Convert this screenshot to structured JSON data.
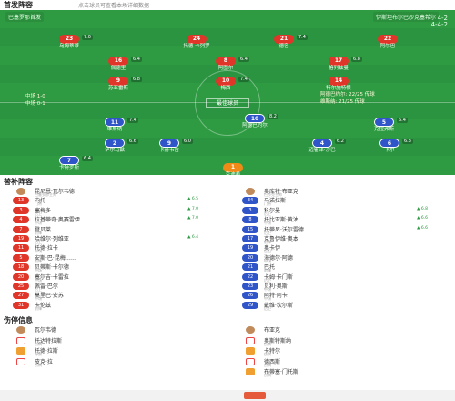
{
  "header": {
    "title": "首发阵容",
    "subtitle": "点击球员可查看本场详细数据"
  },
  "pitch": {
    "home_label": "巴塞罗那首发",
    "away_label": "伊斯坦布尔巴沙克塞希尔",
    "formation_top": "4-2",
    "formation_bottom": "4-4-2",
    "center_text": "最佳球员",
    "event_left_1": "中场 1-0",
    "event_left_2": "中场 0-1",
    "event_right_1": "阿德巴约尔: 22/25 传球",
    "event_right_2": "维斯纳: 21/25 传球",
    "home_players": [
      {
        "num": "23",
        "name": "乌姆蒂蒂",
        "tag": "7.0"
      },
      {
        "num": "24",
        "name": "托德·卡列罗",
        "tag": ""
      },
      {
        "num": "21",
        "name": "德容",
        "tag": "7.4"
      },
      {
        "num": "22",
        "name": "阿尔巴",
        "tag": ""
      },
      {
        "num": "16",
        "name": "佩德里",
        "tag": "6.4"
      },
      {
        "num": "8",
        "name": "阿图尔",
        "tag": "6.4"
      },
      {
        "num": "17",
        "name": "格列兹曼",
        "tag": "6.8"
      },
      {
        "num": "9",
        "name": "苏亚雷斯",
        "tag": "6.8"
      },
      {
        "num": "10",
        "name": "梅西",
        "tag": "7.4"
      },
      {
        "num": "14",
        "name": "特尔施特根",
        "tag": ""
      }
    ],
    "away_players": [
      {
        "num": "11",
        "name": "维斯纳",
        "tag": "7.4"
      },
      {
        "num": "10",
        "name": "阿德巴约尔",
        "tag": "8.2"
      },
      {
        "num": "5",
        "name": "克拉弗斯",
        "tag": "6.4"
      },
      {
        "num": "2",
        "name": "伊尔马兹",
        "tag": "6.6"
      },
      {
        "num": "9",
        "name": "卡赫韦吉",
        "tag": "6.0"
      },
      {
        "num": "4",
        "name": "迈霍泽·沙巴",
        "tag": "6.2"
      },
      {
        "num": "6",
        "name": "卡尔",
        "tag": "6.3"
      },
      {
        "num": "7",
        "name": "卡特罗斯",
        "tag": "6.4"
      },
      {
        "num": "1",
        "name": "京迪希",
        "tag": ""
      }
    ]
  },
  "bench": {
    "title": "替补阵容",
    "home_coach": "瓦尔韦德",
    "away_coach": "布亚克",
    "home": [
      {
        "num": "主帅",
        "name": "昆尼恩·瓦尔韦德",
        "pos": "巴塞罗那主帅",
        "ev": ""
      },
      {
        "num": "13",
        "name": "内托",
        "pos": "门将",
        "ev": "▲ 6.5"
      },
      {
        "num": "3",
        "name": "塞梅多",
        "pos": "后卫",
        "ev": "▲ 7.0"
      },
      {
        "num": "4",
        "name": "拉基蒂奇·奥赛雷伊",
        "pos": "中场",
        "ev": "▲ 7.0"
      },
      {
        "num": "7",
        "name": "登贝莱",
        "pos": "前锋",
        "ev": ""
      },
      {
        "num": "19",
        "name": "哈维尔·列维亚",
        "pos": "后卫",
        "ev": "▲ 6.4"
      },
      {
        "num": "11",
        "name": "托德·拉卡",
        "pos": "中场",
        "ev": ""
      },
      {
        "num": "5",
        "name": "安斯·巴·昆梅……",
        "pos": "前锋",
        "ev": ""
      },
      {
        "num": "18",
        "name": "贝蒂斯·卡尔德",
        "pos": "中场",
        "ev": ""
      },
      {
        "num": "20",
        "name": "塞尔吉·卡雷拉",
        "pos": "中场",
        "ev": ""
      },
      {
        "num": "25",
        "name": "佩雷·巴尔",
        "pos": "后卫",
        "ev": ""
      },
      {
        "num": "27",
        "name": "莫里巴·安苏",
        "pos": "中场",
        "ev": ""
      },
      {
        "num": "31",
        "name": "卡伦兹",
        "pos": "前锋",
        "ev": ""
      }
    ],
    "away": [
      {
        "num": "主帅",
        "name": "奥库特·布亚克",
        "pos": "巴沙克主帅",
        "ev": ""
      },
      {
        "num": "34",
        "name": "马诺拉斯",
        "pos": "门将",
        "ev": ""
      },
      {
        "num": "3",
        "name": "科尔曼",
        "pos": "后卫",
        "ev": "▲ 6.8"
      },
      {
        "num": "8",
        "name": "托比亚斯·黄油",
        "pos": "中场",
        "ev": "▲ 6.6"
      },
      {
        "num": "15",
        "name": "托蒂尼·沃尔雷德",
        "pos": "后卫",
        "ev": "▲ 6.6"
      },
      {
        "num": "17",
        "name": "克鲁伊维·奥本",
        "pos": "前锋",
        "ev": ""
      },
      {
        "num": "19",
        "name": "奥卡伊",
        "pos": "后卫",
        "ev": ""
      },
      {
        "num": "20",
        "name": "海德尔·阿德",
        "pos": "中场",
        "ev": ""
      },
      {
        "num": "21",
        "name": "巴托",
        "pos": "前锋",
        "ev": ""
      },
      {
        "num": "22",
        "name": "卡姆·卡门斯",
        "pos": "后卫",
        "ev": ""
      },
      {
        "num": "23",
        "name": "贝利·奥斯",
        "pos": "中场",
        "ev": ""
      },
      {
        "num": "26",
        "name": "阿特·阿卡",
        "pos": "中场",
        "ev": ""
      },
      {
        "num": "29",
        "name": "戴维·坎尔斯",
        "pos": "后卫",
        "ev": ""
      }
    ]
  },
  "injuries": {
    "title": "伤停信息",
    "home": [
      {
        "name": "瓦尔韦德",
        "pos": ""
      },
      {
        "name": "托达特拉斯",
        "pos": "伤病"
      },
      {
        "name": "托德·拉斯",
        "pos": "停赛"
      },
      {
        "name": "皮克·拉",
        "pos": "伤病"
      }
    ],
    "away": [
      {
        "name": "布亚克",
        "pos": ""
      },
      {
        "name": "奥斯特斯纳",
        "pos": "伤病"
      },
      {
        "name": "卡特尔",
        "pos": "伤病"
      },
      {
        "name": "德西斯",
        "pos": "伤病"
      },
      {
        "name": "布蒂塞·门托斯",
        "pos": "伤病"
      }
    ]
  }
}
